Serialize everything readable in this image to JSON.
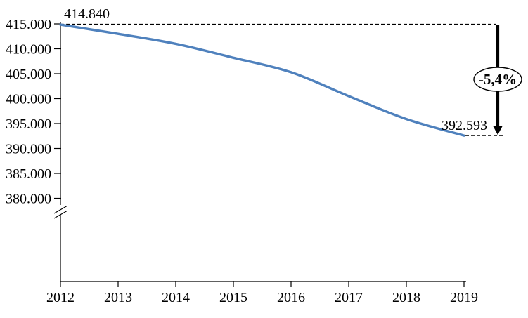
{
  "chart_data": {
    "type": "line",
    "title": "",
    "x": [
      2012,
      2013,
      2014,
      2015,
      2016,
      2017,
      2018,
      2019
    ],
    "values": [
      414840,
      413000,
      411000,
      408200,
      405300,
      400500,
      395900,
      392593
    ],
    "x_tick_labels": [
      "2012",
      "2013",
      "2014",
      "2015",
      "2016",
      "2017",
      "2018",
      "2019"
    ],
    "y_tick_values": [
      415000,
      410000,
      405000,
      400000,
      395000,
      390000,
      385000,
      380000
    ],
    "y_tick_labels": [
      "415.000",
      "410.000",
      "405.000",
      "400.000",
      "395.000",
      "390.000",
      "385.000",
      "380.000"
    ],
    "ylim_shown": [
      380000,
      415000
    ],
    "axis_break": true,
    "grid": false,
    "legend": "none",
    "line_color": "#4F81BD",
    "axis_color": "#000000",
    "annotations": {
      "first_point_label": "414.840",
      "last_point_label": "392.593",
      "change_badge": "-5,4%"
    }
  }
}
